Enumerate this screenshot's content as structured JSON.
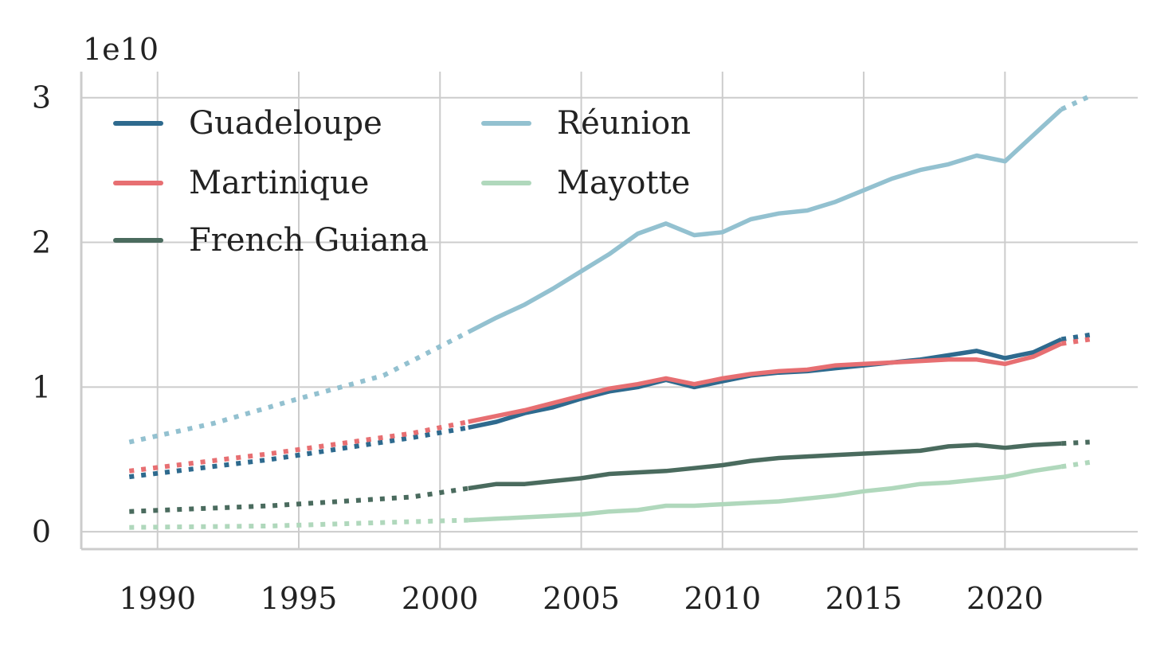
{
  "chart_data": {
    "type": "line",
    "ylabel_offset": "1e10",
    "xlim": [
      1987.3,
      2024.7
    ],
    "ylim": [
      -0.12,
      3.18
    ],
    "x_ticks": [
      1990,
      1995,
      2000,
      2005,
      2010,
      2015,
      2020
    ],
    "x_tick_labels": [
      "1990",
      "1995",
      "2000",
      "2005",
      "2010",
      "2015",
      "2020"
    ],
    "y_ticks": [
      0,
      1,
      2,
      3
    ],
    "y_tick_labels": [
      "0",
      "1",
      "2",
      "3"
    ],
    "grid": true,
    "legend_position": "top-left",
    "estimated_segments_style": "dotted",
    "series": [
      {
        "name": "Guadeloupe",
        "color": "#2e6a8e",
        "estimated": [
          [
            1989,
            0.38
          ],
          [
            1994,
            0.5
          ],
          [
            1999,
            0.65
          ],
          [
            2001,
            0.72
          ]
        ],
        "actual": [
          [
            2001,
            0.72
          ],
          [
            2002,
            0.76
          ],
          [
            2003,
            0.82
          ],
          [
            2004,
            0.86
          ],
          [
            2005,
            0.92
          ],
          [
            2006,
            0.97
          ],
          [
            2007,
            1.0
          ],
          [
            2008,
            1.05
          ],
          [
            2009,
            1.0
          ],
          [
            2010,
            1.04
          ],
          [
            2011,
            1.08
          ],
          [
            2012,
            1.1
          ],
          [
            2013,
            1.11
          ],
          [
            2014,
            1.13
          ],
          [
            2015,
            1.15
          ],
          [
            2016,
            1.17
          ],
          [
            2017,
            1.19
          ],
          [
            2018,
            1.22
          ],
          [
            2019,
            1.25
          ],
          [
            2020,
            1.2
          ],
          [
            2021,
            1.24
          ],
          [
            2022,
            1.33
          ]
        ],
        "projected": [
          [
            2022,
            1.33
          ],
          [
            2023,
            1.36
          ]
        ]
      },
      {
        "name": "Martinique",
        "color": "#e76f72",
        "estimated": [
          [
            1989,
            0.42
          ],
          [
            1994,
            0.54
          ],
          [
            1999,
            0.68
          ],
          [
            2001,
            0.76
          ]
        ],
        "actual": [
          [
            2001,
            0.76
          ],
          [
            2002,
            0.8
          ],
          [
            2003,
            0.84
          ],
          [
            2004,
            0.89
          ],
          [
            2005,
            0.94
          ],
          [
            2006,
            0.99
          ],
          [
            2007,
            1.02
          ],
          [
            2008,
            1.06
          ],
          [
            2009,
            1.02
          ],
          [
            2010,
            1.06
          ],
          [
            2011,
            1.09
          ],
          [
            2012,
            1.11
          ],
          [
            2013,
            1.12
          ],
          [
            2014,
            1.15
          ],
          [
            2015,
            1.16
          ],
          [
            2016,
            1.17
          ],
          [
            2017,
            1.18
          ],
          [
            2018,
            1.19
          ],
          [
            2019,
            1.19
          ],
          [
            2020,
            1.16
          ],
          [
            2021,
            1.21
          ],
          [
            2022,
            1.3
          ]
        ],
        "projected": [
          [
            2022,
            1.3
          ],
          [
            2023,
            1.33
          ]
        ]
      },
      {
        "name": "French Guiana",
        "color": "#4a6b5e",
        "estimated": [
          [
            1989,
            0.14
          ],
          [
            1994,
            0.18
          ],
          [
            1999,
            0.24
          ],
          [
            2001,
            0.3
          ]
        ],
        "actual": [
          [
            2001,
            0.3
          ],
          [
            2002,
            0.33
          ],
          [
            2003,
            0.33
          ],
          [
            2004,
            0.35
          ],
          [
            2005,
            0.37
          ],
          [
            2006,
            0.4
          ],
          [
            2007,
            0.41
          ],
          [
            2008,
            0.42
          ],
          [
            2009,
            0.44
          ],
          [
            2010,
            0.46
          ],
          [
            2011,
            0.49
          ],
          [
            2012,
            0.51
          ],
          [
            2013,
            0.52
          ],
          [
            2014,
            0.53
          ],
          [
            2015,
            0.54
          ],
          [
            2016,
            0.55
          ],
          [
            2017,
            0.56
          ],
          [
            2018,
            0.59
          ],
          [
            2019,
            0.6
          ],
          [
            2020,
            0.58
          ],
          [
            2021,
            0.6
          ],
          [
            2022,
            0.61
          ]
        ],
        "projected": [
          [
            2022,
            0.61
          ],
          [
            2023,
            0.62
          ]
        ]
      },
      {
        "name": "Réunion",
        "color": "#93c1d0",
        "estimated": [
          [
            1989,
            0.62
          ],
          [
            1992,
            0.75
          ],
          [
            1995,
            0.92
          ],
          [
            1998,
            1.08
          ],
          [
            2001,
            1.38
          ]
        ],
        "actual": [
          [
            2001,
            1.38
          ],
          [
            2002,
            1.48
          ],
          [
            2003,
            1.57
          ],
          [
            2004,
            1.68
          ],
          [
            2005,
            1.8
          ],
          [
            2006,
            1.92
          ],
          [
            2007,
            2.06
          ],
          [
            2008,
            2.13
          ],
          [
            2009,
            2.05
          ],
          [
            2010,
            2.07
          ],
          [
            2011,
            2.16
          ],
          [
            2012,
            2.2
          ],
          [
            2013,
            2.22
          ],
          [
            2014,
            2.28
          ],
          [
            2015,
            2.36
          ],
          [
            2016,
            2.44
          ],
          [
            2017,
            2.5
          ],
          [
            2018,
            2.54
          ],
          [
            2019,
            2.6
          ],
          [
            2020,
            2.56
          ],
          [
            2021,
            2.74
          ],
          [
            2022,
            2.92
          ]
        ],
        "projected": [
          [
            2022,
            2.92
          ],
          [
            2023,
            3.01
          ]
        ]
      },
      {
        "name": "Mayotte",
        "color": "#b0d8bc",
        "estimated": [
          [
            1989,
            0.03
          ],
          [
            1994,
            0.04
          ],
          [
            1999,
            0.07
          ],
          [
            2001,
            0.08
          ]
        ],
        "actual": [
          [
            2001,
            0.08
          ],
          [
            2002,
            0.09
          ],
          [
            2003,
            0.1
          ],
          [
            2004,
            0.11
          ],
          [
            2005,
            0.12
          ],
          [
            2006,
            0.14
          ],
          [
            2007,
            0.15
          ],
          [
            2008,
            0.18
          ],
          [
            2009,
            0.18
          ],
          [
            2010,
            0.19
          ],
          [
            2011,
            0.2
          ],
          [
            2012,
            0.21
          ],
          [
            2013,
            0.23
          ],
          [
            2014,
            0.25
          ],
          [
            2015,
            0.28
          ],
          [
            2016,
            0.3
          ],
          [
            2017,
            0.33
          ],
          [
            2018,
            0.34
          ],
          [
            2019,
            0.36
          ],
          [
            2020,
            0.38
          ],
          [
            2021,
            0.42
          ],
          [
            2022,
            0.45
          ]
        ],
        "projected": [
          [
            2022,
            0.45
          ],
          [
            2023,
            0.48
          ]
        ]
      }
    ],
    "legend_order": [
      [
        "Guadeloupe",
        "Martinique",
        "French Guiana"
      ],
      [
        "Réunion",
        "Mayotte"
      ]
    ]
  }
}
